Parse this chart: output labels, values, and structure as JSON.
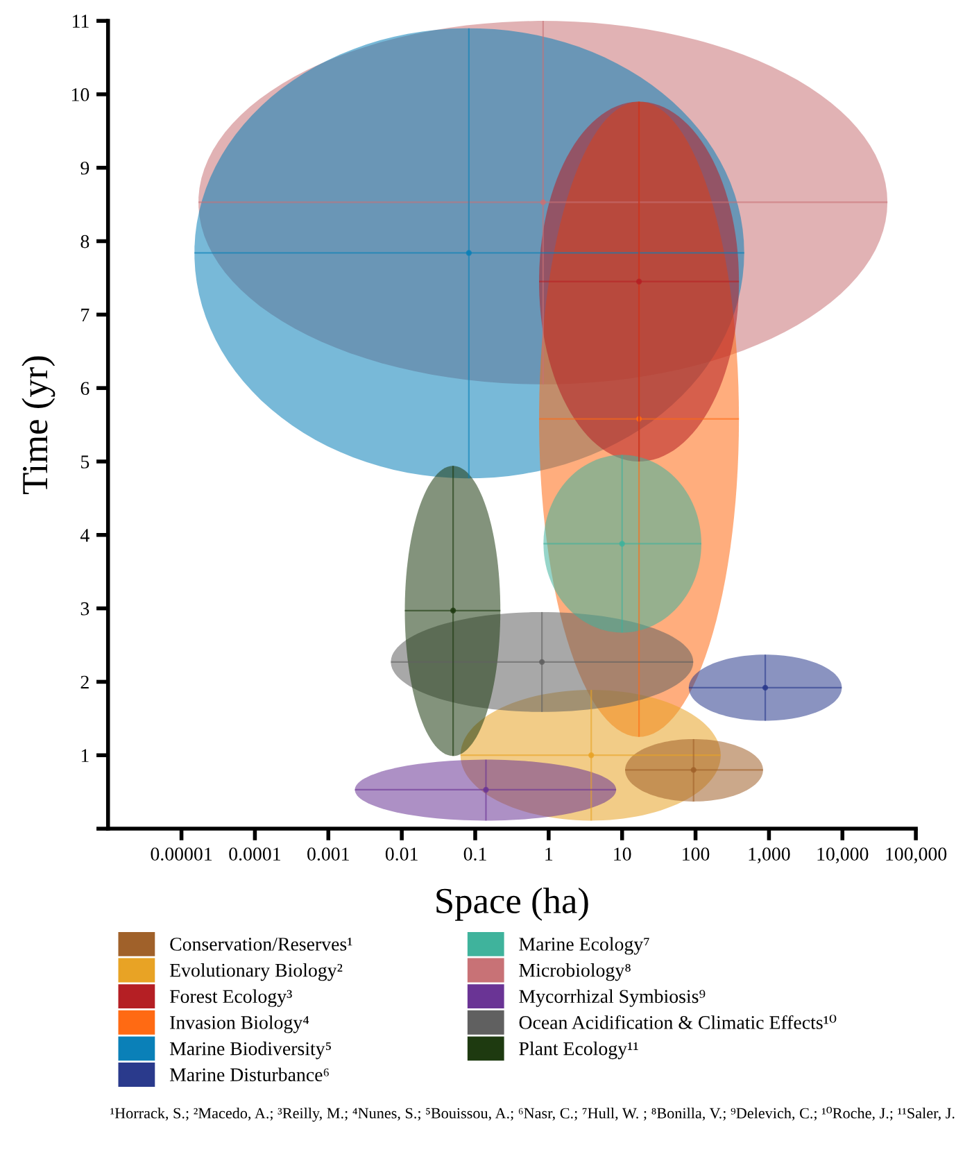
{
  "chart_data": {
    "type": "scatter",
    "xlabel": "Space (ha)",
    "ylabel": "Time (yr)",
    "log": "x",
    "xlim": [
      1e-06,
      100000
    ],
    "ylim": [
      0,
      11
    ],
    "xticks": [
      {
        "value": 1e-05,
        "label": "0.00001"
      },
      {
        "value": 0.0001,
        "label": "0.0001"
      },
      {
        "value": 0.001,
        "label": "0.001"
      },
      {
        "value": 0.01,
        "label": "0.01"
      },
      {
        "value": 0.1,
        "label": "0.1"
      },
      1,
      10,
      100,
      {
        "value": 1000,
        "label": "1,000"
      },
      {
        "value": 10000,
        "label": "10,000"
      },
      {
        "value": 100000,
        "label": "100,000"
      }
    ],
    "yticks": [
      {
        "value": 0,
        "label": null
      },
      1,
      2,
      3,
      4,
      5,
      6,
      7,
      8,
      9,
      10,
      11
    ],
    "grid": false,
    "legend": "bottom",
    "marker": "none",
    "series": [
      {
        "name": "Conservation/Reserves¹",
        "color": "#a0612a",
        "x": [
          94
        ],
        "values": [
          0.8
        ],
        "xerrors": [
          [
            11,
            830
          ]
        ],
        "errors": [
          [
            0.37,
            1.22
          ]
        ]
      },
      {
        "name": "Evolutionary Biology²",
        "color": "#e8a325",
        "x": [
          3.8
        ],
        "values": [
          1.0
        ],
        "xerrors": [
          [
            0.063,
            220
          ]
        ],
        "errors": [
          [
            0.11,
            1.89
          ]
        ]
      },
      {
        "name": "Forest Ecology³",
        "color": "#b51f24",
        "x": [
          17
        ],
        "values": [
          7.45
        ],
        "xerrors": [
          [
            0.74,
            390
          ]
        ],
        "errors": [
          [
            5.0,
            9.9
          ]
        ]
      },
      {
        "name": "Invasion Biology⁴",
        "color": "#ff6a13",
        "x": [
          17
        ],
        "values": [
          5.58
        ],
        "xerrors": [
          [
            0.74,
            390
          ]
        ],
        "errors": [
          [
            1.25,
            9.9
          ]
        ]
      },
      {
        "name": "Marine Biodiversity⁵",
        "color": "#0a80b8",
        "x": [
          0.082
        ],
        "values": [
          7.84
        ],
        "xerrors": [
          [
            1.5e-05,
            460
          ]
        ],
        "errors": [
          [
            4.77,
            10.9
          ]
        ]
      },
      {
        "name": "Marine Disturbance⁶",
        "color": "#2a3a8c",
        "x": [
          890
        ],
        "values": [
          1.92
        ],
        "xerrors": [
          [
            81,
            9800
          ]
        ],
        "errors": [
          [
            1.47,
            2.37
          ]
        ]
      },
      {
        "name": "Marine Ecology⁷",
        "color": "#3fb39c",
        "x": [
          10
        ],
        "values": [
          3.88
        ],
        "xerrors": [
          [
            0.85,
            120
          ]
        ],
        "errors": [
          [
            2.67,
            5.09
          ]
        ]
      },
      {
        "name": "Microbiology⁸",
        "color": "#c87276",
        "x": [
          0.84
        ],
        "values": [
          8.53
        ],
        "xerrors": [
          [
            1.7e-05,
            41000
          ]
        ],
        "errors": [
          [
            6.05,
            11
          ]
        ]
      },
      {
        "name": "Mycorrhizal Symbiosis⁹",
        "color": "#6a3495",
        "x": [
          0.14
        ],
        "values": [
          0.53
        ],
        "xerrors": [
          [
            0.0023,
            8.3
          ]
        ],
        "errors": [
          [
            0.11,
            0.94
          ]
        ]
      },
      {
        "name": "Ocean Acidification & Climatic Effects¹⁰",
        "color": "#606060",
        "x": [
          0.81
        ],
        "values": [
          2.27
        ],
        "xerrors": [
          [
            0.0071,
            93
          ]
        ],
        "errors": [
          [
            1.59,
            2.95
          ]
        ]
      },
      {
        "name": "Plant Ecology¹¹",
        "color": "#1e3a10",
        "x": [
          0.05
        ],
        "values": [
          2.97
        ],
        "xerrors": [
          [
            0.011,
            0.22
          ]
        ],
        "errors": [
          [
            0.99,
            4.94
          ]
        ]
      }
    ],
    "annotations": [
      "¹Horrack, S.; ²Macedo, A.; ³Reilly, M.; ⁴Nunes, S.; ⁵Bouissou, A.; ⁶Nasr, C.; ⁷Hull, W. ; ⁸Bonilla, V.; ⁹Delevich, C.; ¹⁰Roche, J.; ¹¹Saler, J."
    ]
  }
}
